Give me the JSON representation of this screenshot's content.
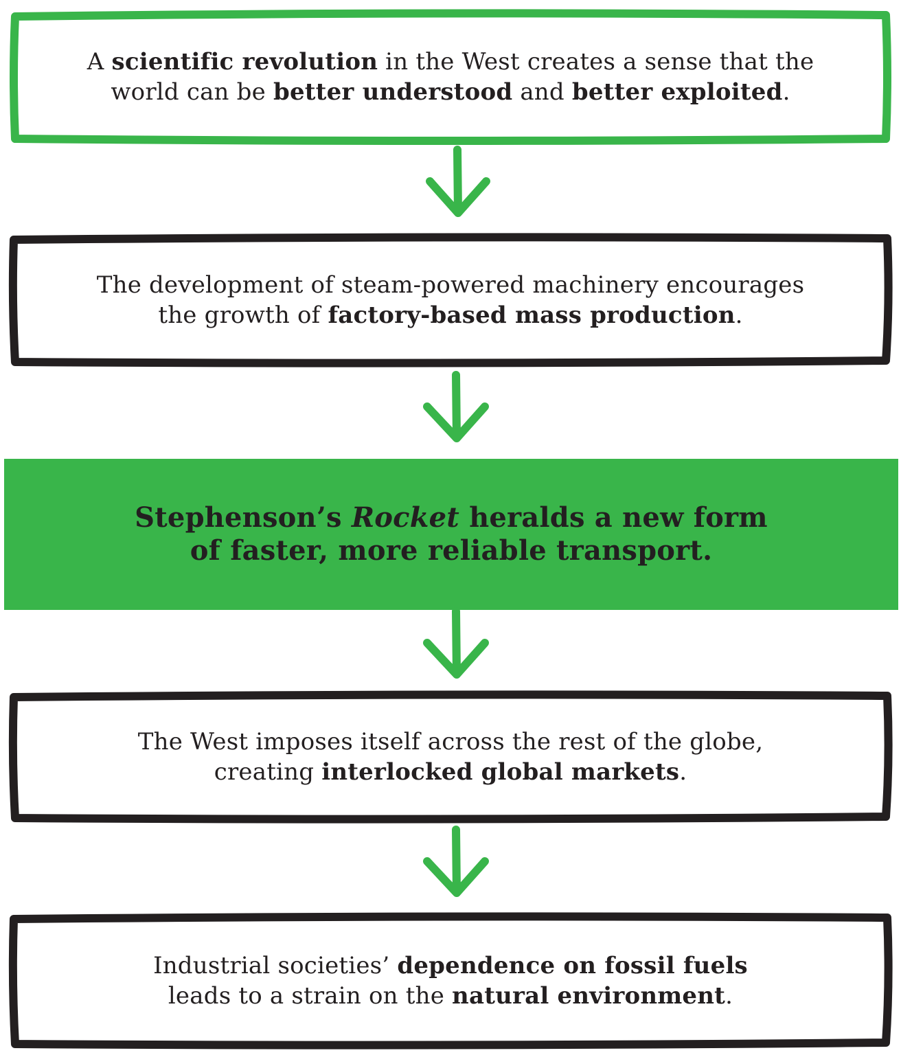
{
  "colors": {
    "green": "#39b54a",
    "dark": "#231f20"
  },
  "steps": [
    {
      "line1": {
        "a": "A ",
        "b": "scientific revolution",
        "c": " in the West creates a sense that the"
      },
      "line2": {
        "a": "world can be ",
        "b": "better understood",
        "c": " and ",
        "d": "better exploited",
        "e": "."
      }
    },
    {
      "line1": {
        "a": "The development of steam-powered machinery encourages"
      },
      "line2": {
        "a": "the growth of ",
        "b": "factory-based mass production",
        "c": "."
      }
    },
    {
      "line1": {
        "a": "Stephenson’s ",
        "b": "Rocket",
        "c": " heralds a new form"
      },
      "line2": {
        "a": "of faster, more reliable transport."
      }
    },
    {
      "line1": {
        "a": "The West imposes itself across the rest of the globe,"
      },
      "line2": {
        "a": "creating ",
        "b": "interlocked global markets",
        "c": "."
      }
    },
    {
      "line1": {
        "a": "Industrial societies’ ",
        "b": "dependence on fossil fuels"
      },
      "line2": {
        "a": "leads to a strain on the ",
        "b": "natural environment",
        "c": "."
      }
    }
  ]
}
